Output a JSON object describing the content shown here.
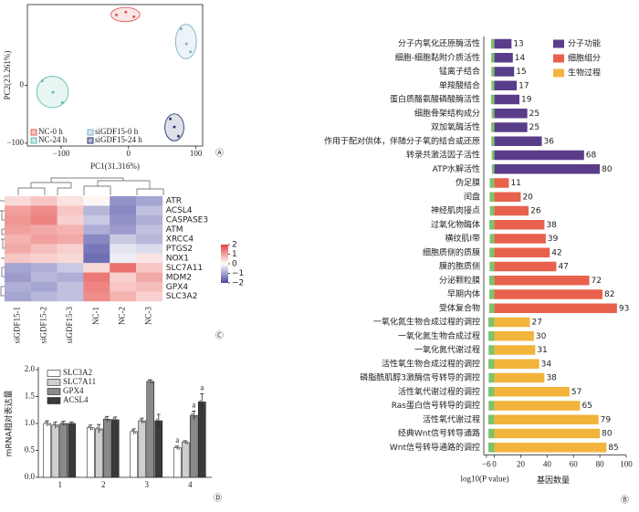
{
  "chart_data": [
    {
      "type": "scatter",
      "panel_label": "Ⓐ",
      "x_label": "PC1(31.316%)",
      "y_label": "PC2(23.261%)",
      "xlim": [
        -150,
        110
      ],
      "ylim": [
        -105,
        140
      ],
      "xticks": [
        {
          "value": -100,
          "label": "−100"
        },
        0,
        100
      ],
      "yticks": [
        {
          "value": -100,
          "label": "−100"
        },
        0
      ],
      "series": [
        {
          "name": "NC-0 h",
          "color": "#e05a5a",
          "x": [
            -18,
            -4,
            8
          ],
          "y": [
            122,
            127,
            119
          ]
        },
        {
          "name": "siGDF15-0 h",
          "color": "#7fb2c8",
          "x": [
            78,
            86,
            92
          ],
          "y": [
            98,
            72,
            58
          ]
        },
        {
          "name": "NC-24 h",
          "color": "#5fbfae",
          "x": [
            -128,
            -112,
            -98
          ],
          "y": [
            8,
            -12,
            -30
          ]
        },
        {
          "name": "siGDF15-24 h",
          "color": "#2a3570",
          "x": [
            62,
            68,
            74
          ],
          "y": [
            -58,
            -72,
            -88
          ]
        }
      ]
    },
    {
      "type": "heatmap",
      "panel_label": "Ⓒ",
      "rows": [
        "ATR",
        "ACSL4",
        "CASPASE3",
        "ATM",
        "XRCC4",
        "PTGS2",
        "NOX1",
        "SLC7A11",
        "MDM2",
        "GPX4",
        "SLC3A2"
      ],
      "columns": [
        "siGDF15-1",
        "siGDF15-2",
        "siGDF15-3",
        "NC-1",
        "NC-2",
        "NC-3"
      ],
      "values": [
        [
          0.4,
          0.6,
          0.3,
          0.1,
          -1.2,
          -1.0
        ],
        [
          1.0,
          1.2,
          0.6,
          -0.8,
          -1.3,
          -0.7
        ],
        [
          1.1,
          1.3,
          0.5,
          -0.6,
          -1.2,
          -0.9
        ],
        [
          1.0,
          0.9,
          0.8,
          -0.9,
          -1.1,
          -0.7
        ],
        [
          0.8,
          1.0,
          0.9,
          -1.3,
          -0.6,
          -0.8
        ],
        [
          0.9,
          0.7,
          0.5,
          -1.5,
          -0.3,
          -0.4
        ],
        [
          0.6,
          0.5,
          0.4,
          -1.6,
          -0.2,
          0.3
        ],
        [
          -1.0,
          -0.9,
          -0.6,
          0.4,
          1.5,
          0.6
        ],
        [
          -1.1,
          -0.8,
          -0.9,
          1.4,
          0.5,
          0.9
        ],
        [
          -0.9,
          -1.0,
          -0.7,
          1.3,
          0.6,
          0.7
        ],
        [
          -1.0,
          -0.8,
          -0.7,
          1.2,
          0.8,
          0.5
        ]
      ],
      "colormap": [
        "#4b4aa3",
        "#ffffff",
        "#e3413d"
      ],
      "colorbar": {
        "lim": [
          -2,
          2
        ],
        "ticks": [
          2,
          1,
          0,
          {
            "value": -1,
            "label": "−1"
          },
          {
            "value": -2,
            "label": "−2"
          }
        ]
      }
    },
    {
      "type": "grouped_bar",
      "panel_label": "Ⓓ",
      "y_label": "mRNA相对表达量",
      "categories": [
        "1",
        "2",
        "3",
        "4"
      ],
      "ylim": [
        0,
        2.0
      ],
      "yticks": [
        {
          "value": 0,
          "label": "0.0"
        },
        0.5,
        {
          "value": 1,
          "label": "1.0"
        },
        1.5,
        {
          "value": 2,
          "label": "2.0"
        }
      ],
      "series": [
        {
          "name": "SLC3A2",
          "color": "#ffffff",
          "values": [
            1.0,
            0.92,
            0.85,
            0.55
          ],
          "errors": [
            0.05,
            0.05,
            0.05,
            0.03
          ],
          "annotations": [
            null,
            null,
            null,
            "a"
          ]
        },
        {
          "name": "SLC7A11",
          "color": "#cfcfcf",
          "values": [
            0.97,
            0.9,
            1.05,
            0.65
          ],
          "errors": [
            0.06,
            0.08,
            0.05,
            0.03
          ],
          "annotations": [
            null,
            null,
            null,
            null
          ]
        },
        {
          "name": "GPX4",
          "color": "#8a8a8a",
          "values": [
            1.0,
            1.08,
            1.78,
            1.15
          ],
          "errors": [
            0.04,
            0.05,
            0.03,
            0.08
          ],
          "annotations": [
            null,
            null,
            null,
            "a"
          ]
        },
        {
          "name": "ACSL4",
          "color": "#3a3a3a",
          "values": [
            1.0,
            1.07,
            1.05,
            1.4
          ],
          "errors": [
            0.03,
            0.05,
            0.12,
            0.15
          ],
          "annotations": [
            null,
            null,
            null,
            "a"
          ]
        }
      ]
    },
    {
      "type": "go_barh",
      "panel_label": "Ⓑ",
      "x_label": "log10(P value)",
      "x_label_2": "基因数量",
      "pvalue_color": "#7dc36b",
      "xlim": [
        -8,
        100
      ],
      "xticks": [
        {
          "value": -6,
          "label": "−6"
        },
        0,
        20,
        40,
        60,
        80,
        100
      ],
      "series": [
        {
          "name": "分子功能",
          "color": "#5a3d8a",
          "categories": [
            "分子内氧化还原酶活性",
            "细胞-细胞黏附介质活性",
            "锰离子结合",
            "单羧酸结合",
            "蛋白质酪氨酸磷酸酶活性",
            "细胞骨架结构成分",
            "双加氧酶活性",
            "作用于配对供体，伴随分子氧的结合或还原",
            "转录共激活因子活性",
            "ATP水解活性"
          ],
          "values": [
            13,
            14,
            15,
            17,
            19,
            25,
            25,
            36,
            68,
            80
          ],
          "log_p": [
            -2.5,
            -2.4,
            -2.3,
            -2.2,
            -2.6,
            -2.1,
            -2.4,
            -2.3,
            -2.0,
            -1.9
          ]
        },
        {
          "name": "细胞组分",
          "color": "#e8614d",
          "categories": [
            "伪足膜",
            "闰盘",
            "神经肌肉接点",
            "过氧化物酶体",
            "横纹肌Ⅰ带",
            "细胞质侧的质膜",
            "膜的胞质侧",
            "分泌颗粒膜",
            "早期内体",
            "受体复合物"
          ],
          "values": [
            11,
            20,
            26,
            38,
            39,
            42,
            47,
            72,
            82,
            93
          ],
          "log_p": [
            -3.5,
            -3.6,
            -3.4,
            -3.8,
            -3.5,
            -3.7,
            -3.6,
            -3.9,
            -3.8,
            -4.0
          ]
        },
        {
          "name": "生物过程",
          "color": "#f3b43b",
          "categories": [
            "一氧化氮生物合成过程的调控",
            "一氧化氮生物合成过程",
            "一氧化氮代谢过程",
            "活性氧生物合成过程的调控",
            "磷脂酰肌醇3激酶信号转导的调控",
            "活性氧代谢过程的调控",
            "Ras蛋白信号转导的调控",
            "活性氧代谢过程",
            "经典Wnt信号转导通路",
            "Wnt信号转导通路的调控"
          ],
          "values": [
            27,
            30,
            31,
            34,
            38,
            57,
            65,
            79,
            80,
            85
          ],
          "log_p": [
            -4.6,
            -4.5,
            -4.4,
            -4.5,
            -4.3,
            -4.6,
            -4.4,
            -4.7,
            -4.5,
            -4.6
          ]
        }
      ]
    }
  ]
}
